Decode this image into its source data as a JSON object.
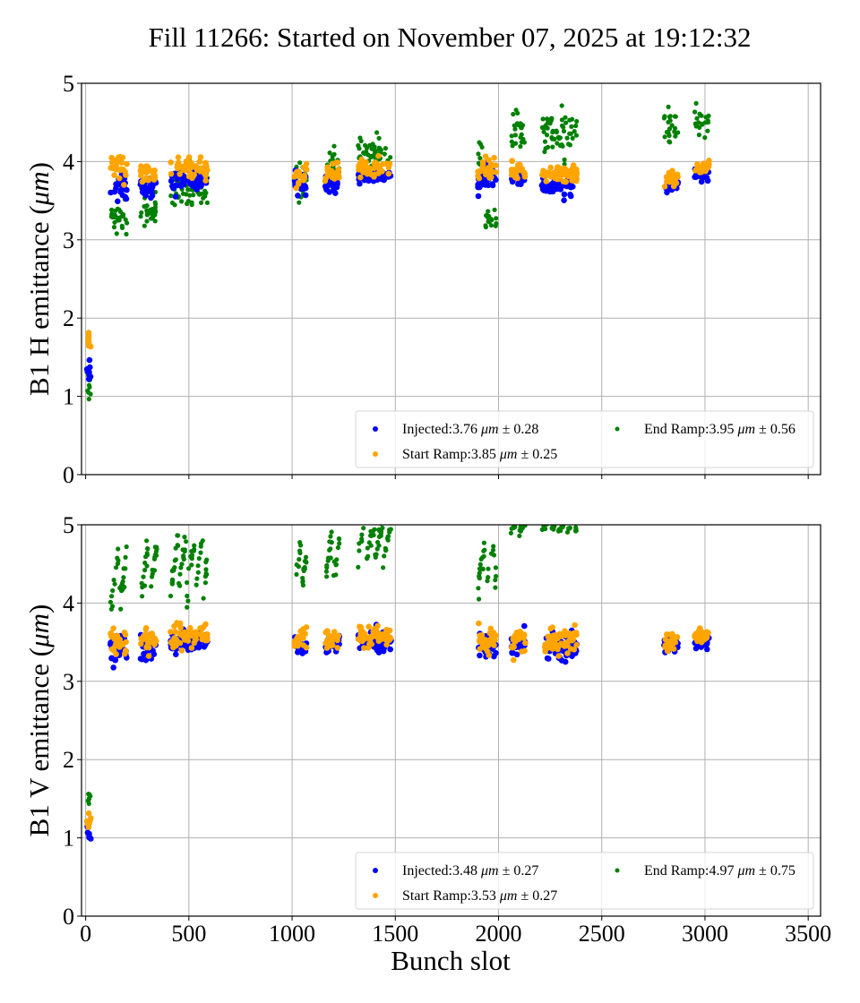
{
  "chart_data": {
    "type": "scatter",
    "title": "Fill 11266: Started on November 07, 2025 at 19:12:32",
    "xlabel": "Bunch slot",
    "xlim": [
      -20,
      3560
    ],
    "xticks": [
      "0",
      "500",
      "1000",
      "1500",
      "2000",
      "2500",
      "3000",
      "3500"
    ],
    "xtick_values": [
      0,
      500,
      1000,
      1500,
      2000,
      2500,
      3000,
      3500
    ],
    "grid": true,
    "colors": {
      "injected": "#0000ff",
      "start_ramp": "#ffa500",
      "end_ramp": "#008000"
    },
    "panels": [
      {
        "id": "h",
        "ylabel_prefix": "B1 H emittance (",
        "ylabel_unit": "μm",
        "ylabel_suffix": ")",
        "ylim": [
          0,
          5
        ],
        "yticks": [
          "0",
          "1",
          "2",
          "3",
          "4",
          "5"
        ],
        "ytick_values": [
          0,
          1,
          2,
          3,
          4,
          5
        ],
        "legend": {
          "placement": "lower-right",
          "entries": [
            {
              "series": "injected",
              "label": "Injected:3.76",
              "unit": "μm",
              "pm": "± 0.28"
            },
            {
              "series": "start_ramp",
              "label": "Start Ramp:3.85",
              "unit": "μm",
              "pm": "± 0.25"
            },
            {
              "series": "end_ramp",
              "label": "End Ramp:3.95",
              "unit": "μm",
              "pm": "± 0.56"
            }
          ]
        },
        "clusters": [
          {
            "x": [
              5,
              25
            ],
            "injected": [
              1.33,
              0.07
            ],
            "start_ramp": [
              1.71,
              0.05
            ],
            "end_ramp": [
              1.15,
              0.1
            ]
          },
          {
            "x": [
              120,
              200
            ],
            "injected": [
              3.72,
              0.09
            ],
            "start_ramp": [
              3.92,
              0.09
            ],
            "end_ramp": [
              3.25,
              0.13
            ]
          },
          {
            "x": [
              265,
              345
            ],
            "injected": [
              3.7,
              0.07
            ],
            "start_ramp": [
              3.88,
              0.07
            ],
            "end_ramp": [
              3.35,
              0.1
            ]
          },
          {
            "x": [
              410,
              590
            ],
            "injected": [
              3.77,
              0.06
            ],
            "start_ramp": [
              3.93,
              0.06
            ],
            "end_ramp": [
              3.65,
              0.14
            ]
          },
          {
            "x": [
              1010,
              1070
            ],
            "injected": [
              3.7,
              0.07
            ],
            "start_ramp": [
              3.82,
              0.07
            ],
            "end_ramp": [
              3.78,
              0.12
            ]
          },
          {
            "x": [
              1160,
              1230
            ],
            "injected": [
              3.72,
              0.06
            ],
            "start_ramp": [
              3.85,
              0.06
            ],
            "end_ramp": [
              3.92,
              0.1
            ]
          },
          {
            "x": [
              1320,
              1480
            ],
            "injected": [
              3.8,
              0.05
            ],
            "start_ramp": [
              3.92,
              0.05
            ],
            "end_ramp": [
              4.1,
              0.1
            ]
          },
          {
            "x": [
              1900,
              1930
            ],
            "injected": [
              3.78,
              0.08
            ],
            "start_ramp": [
              3.88,
              0.07
            ],
            "end_ramp": [
              4.0,
              0.2
            ]
          },
          {
            "x": [
              1935,
              1990
            ],
            "injected": [
              3.8,
              0.07
            ],
            "start_ramp": [
              3.9,
              0.07
            ],
            "end_ramp": [
              3.25,
              0.08
            ]
          },
          {
            "x": [
              2060,
              2130
            ],
            "injected": [
              3.78,
              0.05
            ],
            "start_ramp": [
              3.88,
              0.05
            ],
            "end_ramp": [
              4.4,
              0.13
            ]
          },
          {
            "x": [
              2210,
              2380
            ],
            "injected": [
              3.7,
              0.07
            ],
            "start_ramp": [
              3.83,
              0.06
            ],
            "end_ramp": [
              4.38,
              0.13
            ]
          },
          {
            "x": [
              2800,
              2870
            ],
            "injected": [
              3.72,
              0.05
            ],
            "start_ramp": [
              3.8,
              0.05
            ],
            "end_ramp": [
              4.42,
              0.1
            ]
          },
          {
            "x": [
              2950,
              3020
            ],
            "injected": [
              3.82,
              0.04
            ],
            "start_ramp": [
              3.9,
              0.05
            ],
            "end_ramp": [
              4.5,
              0.1
            ]
          }
        ]
      },
      {
        "id": "v",
        "ylabel_prefix": "B1 V emittance (",
        "ylabel_unit": "μm",
        "ylabel_suffix": ")",
        "ylim": [
          0,
          5
        ],
        "yticks": [
          "0",
          "1",
          "2",
          "3",
          "4",
          "5"
        ],
        "ytick_values": [
          0,
          1,
          2,
          3,
          4,
          5
        ],
        "legend": {
          "placement": "lower-right",
          "entries": [
            {
              "series": "injected",
              "label": "Injected:3.48",
              "unit": "μm",
              "pm": "± 0.27"
            },
            {
              "series": "start_ramp",
              "label": "Start Ramp:3.53",
              "unit": "μm",
              "pm": "± 0.27"
            },
            {
              "series": "end_ramp",
              "label": "End Ramp:4.97",
              "unit": "μm",
              "pm": "± 0.75"
            }
          ]
        },
        "clusters": [
          {
            "x": [
              5,
              25
            ],
            "injected": [
              1.1,
              0.06
            ],
            "start_ramp": [
              1.22,
              0.06
            ],
            "end_ramp": [
              1.55,
              0.12
            ]
          },
          {
            "x": [
              120,
              200
            ],
            "injected": [
              3.42,
              0.08
            ],
            "start_ramp": [
              3.5,
              0.09
            ],
            "end_ramp": [
              4.3,
              0.4
            ]
          },
          {
            "x": [
              265,
              345
            ],
            "injected": [
              3.44,
              0.08
            ],
            "start_ramp": [
              3.52,
              0.08
            ],
            "end_ramp": [
              4.4,
              0.4
            ]
          },
          {
            "x": [
              410,
              590
            ],
            "injected": [
              3.48,
              0.06
            ],
            "start_ramp": [
              3.57,
              0.07
            ],
            "end_ramp": [
              4.5,
              0.35
            ]
          },
          {
            "x": [
              1010,
              1070
            ],
            "injected": [
              3.45,
              0.06
            ],
            "start_ramp": [
              3.53,
              0.06
            ],
            "end_ramp": [
              4.55,
              0.3
            ]
          },
          {
            "x": [
              1160,
              1230
            ],
            "injected": [
              3.47,
              0.06
            ],
            "start_ramp": [
              3.54,
              0.06
            ],
            "end_ramp": [
              4.65,
              0.3
            ]
          },
          {
            "x": [
              1320,
              1480
            ],
            "injected": [
              3.5,
              0.06
            ],
            "start_ramp": [
              3.58,
              0.06
            ],
            "end_ramp": [
              4.8,
              0.22
            ]
          },
          {
            "x": [
              1900,
              1990
            ],
            "injected": [
              3.45,
              0.08
            ],
            "start_ramp": [
              3.53,
              0.08
            ],
            "end_ramp": [
              4.5,
              0.3
            ]
          },
          {
            "x": [
              2060,
              2130
            ],
            "injected": [
              3.47,
              0.07
            ],
            "start_ramp": [
              3.55,
              0.07
            ],
            "end_ramp": [
              5.0,
              0.1
            ]
          },
          {
            "x": [
              2210,
              2380
            ],
            "injected": [
              3.43,
              0.08
            ],
            "start_ramp": [
              3.52,
              0.08
            ],
            "end_ramp": [
              5.0,
              0.08
            ]
          },
          {
            "x": [
              2800,
              2870
            ],
            "injected": [
              3.45,
              0.05
            ],
            "start_ramp": [
              3.52,
              0.06
            ],
            "end_ramp": null
          },
          {
            "x": [
              2950,
              3020
            ],
            "injected": [
              3.5,
              0.05
            ],
            "start_ramp": [
              3.58,
              0.05
            ],
            "end_ramp": null
          }
        ]
      }
    ]
  }
}
